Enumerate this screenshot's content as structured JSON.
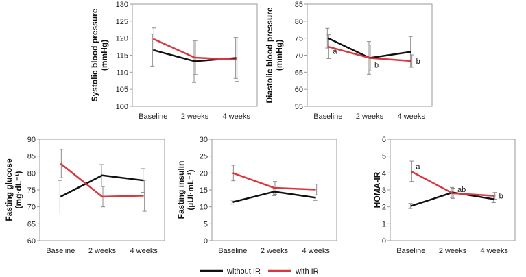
{
  "legend": [
    {
      "name": "without IR",
      "color": "#111111"
    },
    {
      "name": "with IR",
      "color": "#d9373f"
    }
  ],
  "chart_data": [
    {
      "type": "line",
      "ylabel": [
        "Systolic blood pressure",
        "(mmHg)"
      ],
      "categories": [
        "Baseline",
        "2 weeks",
        "4 weeks"
      ],
      "ylim": [
        100,
        130
      ],
      "yticks": [
        100,
        105,
        110,
        115,
        120,
        125,
        130
      ],
      "series": [
        {
          "name": "without IR",
          "color": "#111111",
          "values": [
            116.5,
            113.2,
            114.2
          ],
          "err": [
            4.7,
            6.2,
            6.0
          ]
        },
        {
          "name": "with IR",
          "color": "#d9373f",
          "values": [
            119.8,
            114.3,
            113.7
          ],
          "err": [
            3.2,
            5.0,
            6.4
          ]
        }
      ],
      "annotations": []
    },
    {
      "type": "line",
      "ylabel": [
        "Diastolic blood pressure",
        "(mmHg)"
      ],
      "categories": [
        "Baseline",
        "2 weeks",
        "4 weeks"
      ],
      "ylim": [
        55,
        85
      ],
      "yticks": [
        55,
        60,
        65,
        70,
        75,
        80,
        85
      ],
      "series": [
        {
          "name": "without IR",
          "color": "#111111",
          "values": [
            75.0,
            69.2,
            71.0
          ],
          "err": [
            2.9,
            4.8,
            4.5
          ]
        },
        {
          "name": "with IR",
          "color": "#d9373f",
          "values": [
            72.5,
            69.2,
            68.3
          ],
          "err": [
            3.5,
            3.8,
            1.8
          ]
        }
      ],
      "annotations": [
        {
          "text": "a",
          "category": 0,
          "value": 71.2
        },
        {
          "text": "b",
          "category": 1,
          "value": 67.2
        },
        {
          "text": "b",
          "category": 2,
          "value": 68.3
        }
      ]
    },
    {
      "type": "line",
      "ylabel": [
        "Fasting glucose",
        "(mg·dL⁻¹)"
      ],
      "categories": [
        "Baseline",
        "2 weeks",
        "4 weeks"
      ],
      "ylim": [
        60,
        90
      ],
      "yticks": [
        60,
        65,
        70,
        75,
        80,
        85,
        90
      ],
      "series": [
        {
          "name": "without IR",
          "color": "#111111",
          "values": [
            73.0,
            79.3,
            77.8
          ],
          "err": [
            4.8,
            3.2,
            3.5
          ]
        },
        {
          "name": "with IR",
          "color": "#d9373f",
          "values": [
            82.8,
            73.0,
            73.3
          ],
          "err": [
            4.2,
            3.0,
            4.6
          ]
        }
      ],
      "annotations": []
    },
    {
      "type": "line",
      "ylabel": [
        "Fasting insulin",
        "(µUI·mL⁻¹)"
      ],
      "categories": [
        "Baseline",
        "2 weeks",
        "4 weeks"
      ],
      "ylim": [
        0,
        30
      ],
      "yticks": [
        0,
        5,
        10,
        15,
        20,
        25,
        30
      ],
      "series": [
        {
          "name": "without IR",
          "color": "#111111",
          "values": [
            11.4,
            14.5,
            12.7
          ],
          "err": [
            0.6,
            1.2,
            0.8
          ]
        },
        {
          "name": "with IR",
          "color": "#d9373f",
          "values": [
            20.0,
            15.6,
            15.1
          ],
          "err": [
            2.3,
            1.9,
            1.6
          ]
        }
      ],
      "annotations": []
    },
    {
      "type": "line",
      "ylabel": [
        "HOMA-IR"
      ],
      "categories": [
        "Baseline",
        "2 weeks",
        "4 weeks"
      ],
      "ylim": [
        0,
        6
      ],
      "yticks": [
        0,
        1,
        2,
        3,
        4,
        5,
        6
      ],
      "series": [
        {
          "name": "without IR",
          "color": "#111111",
          "values": [
            2.05,
            2.85,
            2.45
          ],
          "err": [
            0.15,
            0.3,
            0.2
          ]
        },
        {
          "name": "with IR",
          "color": "#d9373f",
          "values": [
            4.1,
            2.8,
            2.65
          ],
          "err": [
            0.6,
            0.3,
            0.2
          ]
        }
      ],
      "annotations": [
        {
          "text": "a",
          "category": 0,
          "value": 4.4
        },
        {
          "text": "ab",
          "category": 1,
          "value": 3.05
        },
        {
          "text": "b",
          "category": 2,
          "value": 2.65
        }
      ]
    }
  ]
}
